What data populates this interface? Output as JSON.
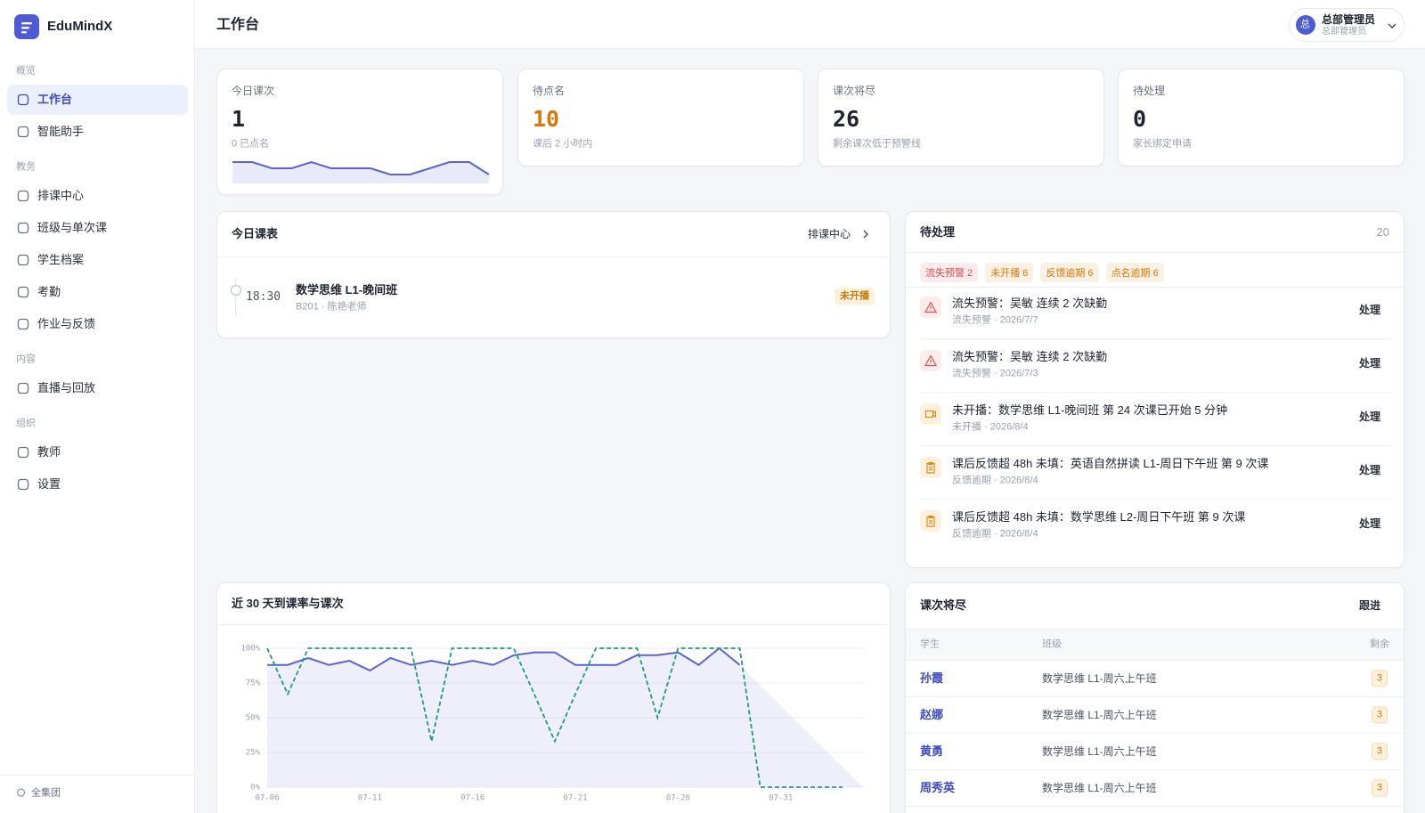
{
  "sidebar": {
    "brand": "EduMindX",
    "groups": [
      {
        "title": "概览",
        "items": [
          "工作台",
          "智能助手"
        ]
      },
      {
        "title": "教务",
        "items": [
          "排课中心",
          "班级与单次课",
          "学生档案",
          "考勤",
          "作业与反馈"
        ]
      },
      {
        "title": "内容",
        "items": [
          "直播与回放"
        ]
      },
      {
        "title": "组织",
        "items": [
          "教师",
          "设置"
        ]
      }
    ],
    "footer": "全集团"
  },
  "header": {
    "title": "工作台",
    "user": {
      "avatar": "总",
      "name": "总部管理员",
      "role": "总部管理员"
    }
  },
  "stats": [
    {
      "label": "今日课次",
      "value": 1,
      "color": "#1f2330",
      "note": "0 已点名",
      "sparkline": {
        "color": "#5b63d3",
        "values": [
          2,
          2,
          1,
          1,
          2,
          1,
          1,
          1,
          0,
          0,
          1,
          2,
          2,
          0
        ]
      }
    },
    {
      "label": "待点名",
      "value": 10,
      "color": "#d97706",
      "note": "课后 2 小时内"
    },
    {
      "label": "课次将尽",
      "value": 26,
      "color": "#1f2330",
      "note": "剩余课次低于预警线"
    },
    {
      "label": "待处理",
      "value": 0,
      "color": "#1f2330",
      "note": "家长绑定申请"
    }
  ],
  "schedule": {
    "title": "今日课表",
    "link": "排课中心",
    "items": [
      {
        "time": "18:30",
        "name": "数学思维 L1-晚间班",
        "meta": "B201 · 陈艳老师",
        "status": "未开播"
      }
    ]
  },
  "todo": {
    "title": "待处理",
    "count": 20,
    "tags": [
      {
        "text": "流失预警 2",
        "color": "#dc4c4c"
      },
      {
        "text": "未开播 6",
        "color": "#d97706"
      },
      {
        "text": "反馈逾期 6",
        "color": "#d97706"
      },
      {
        "text": "点名逾期 6",
        "color": "#d97706"
      }
    ],
    "items": [
      {
        "icon": "alert",
        "title": "流失预警：吴敏 连续 2 次缺勤",
        "meta": "流失预警 · 2026/7/7",
        "action": "处理"
      },
      {
        "icon": "alert",
        "title": "流失预警：吴敏 连续 2 次缺勤",
        "meta": "流失预警 · 2026/7/3",
        "action": "处理"
      },
      {
        "icon": "video",
        "title": "未开播：数学思维 L1-晚间班 第 24 次课已开始 5 分钟",
        "meta": "未开播 · 2026/8/4",
        "action": "处理"
      },
      {
        "icon": "clipboard",
        "title": "课后反馈超 48h 未填：英语自然拼读 L1-周日下午班 第 9 次课",
        "meta": "反馈逾期 · 2026/8/4",
        "action": "处理"
      },
      {
        "icon": "clipboard",
        "title": "课后反馈超 48h 未填：数学思维 L2-周日下午班 第 9 次课",
        "meta": "反馈逾期 · 2026/8/4",
        "action": "处理"
      }
    ]
  },
  "chart_data": {
    "type": "line",
    "title": "近 30 天到课率与课次",
    "categories": [
      "07-06",
      null,
      null,
      null,
      null,
      "07-11",
      null,
      null,
      null,
      null,
      "07-16",
      null,
      null,
      null,
      null,
      "07-21",
      null,
      null,
      null,
      null,
      "07-26",
      null,
      null,
      null,
      null,
      "07-31",
      null,
      null,
      null,
      null
    ],
    "series": [
      {
        "color": "#5b63d3",
        "area": true,
        "values": [
          88,
          88,
          93,
          88,
          91,
          84,
          93,
          88,
          91,
          88,
          91,
          88,
          95,
          97,
          97,
          88,
          88,
          88,
          95,
          95,
          97,
          88,
          100,
          88,
          null,
          null,
          null,
          null,
          null,
          0
        ]
      },
      {
        "color": "#1f9d70",
        "dash": true,
        "values": [
          100,
          67,
          100,
          100,
          100,
          100,
          100,
          100,
          33,
          100,
          100,
          100,
          100,
          67,
          33,
          67,
          100,
          100,
          100,
          50,
          100,
          100,
          100,
          100,
          0,
          0,
          0,
          0,
          0,
          null
        ]
      }
    ],
    "ylim": [
      0,
      100
    ],
    "yticks": [
      {
        "value": 0,
        "label": "0%"
      },
      {
        "value": 25,
        "label": "25%"
      },
      {
        "value": 50,
        "label": "50%"
      },
      {
        "value": 75,
        "label": "75%"
      },
      {
        "value": 100,
        "label": "100%"
      }
    ],
    "grid": true
  },
  "low_balance": {
    "title": "课次将尽",
    "action": "跟进",
    "columns": [
      "学生",
      "班级",
      "剩余"
    ],
    "rows": [
      [
        "孙霞",
        "数学思维 L1-周六上午班",
        3
      ],
      [
        "赵娜",
        "数学思维 L1-周六上午班",
        3
      ],
      [
        "黄勇",
        "数学思维 L1-周六上午班",
        3
      ],
      [
        "周秀英",
        "数学思维 L1-周六上午班",
        3
      ]
    ]
  }
}
